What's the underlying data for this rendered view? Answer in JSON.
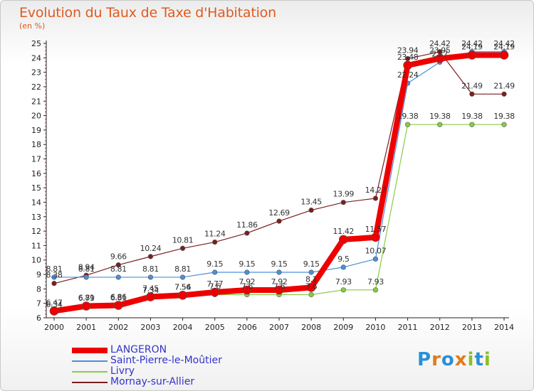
{
  "title": "Evolution du Taux de Taxe d'Habitation",
  "unit": "(en %)",
  "logo": {
    "text": "Proxiti",
    "letters": [
      "P",
      "r",
      "o",
      "x",
      "i",
      "t",
      "i"
    ],
    "colors": [
      "#2a8fd8",
      "#e07b1a",
      "#2a8fd8",
      "#e07b1a",
      "#8cbf26",
      "#2a8fd8",
      "#8cbf26"
    ]
  },
  "chart_data": {
    "type": "line",
    "categories": [
      "2000",
      "2001",
      "2002",
      "2003",
      "2004",
      "2005",
      "2006",
      "2007",
      "2008",
      "2009",
      "2010",
      "2011",
      "2012",
      "2013",
      "2014"
    ],
    "ylim": [
      6,
      25
    ],
    "yticks": [
      6,
      7,
      8,
      9,
      10,
      11,
      12,
      13,
      14,
      15,
      16,
      17,
      18,
      19,
      20,
      21,
      22,
      23,
      24,
      25
    ],
    "grid": false,
    "legend_position": "bottom-left",
    "series": [
      {
        "name": "LANGERON",
        "color": "#ee0000",
        "values": [
          6.47,
          6.81,
          6.86,
          7.45,
          7.56,
          7.77,
          7.92,
          7.92,
          8.1,
          11.42,
          11.57,
          23.48,
          23.95,
          24.19,
          24.19
        ],
        "labels": [
          "6.47",
          "6.81",
          "6.86",
          "7.45",
          "7.56",
          "7.77",
          "7.92",
          "7.92",
          "8.1",
          "11.42",
          "11.57",
          "23.48",
          "23.95",
          "24.19",
          "24.19"
        ]
      },
      {
        "name": "Saint-Pierre-le-Moûtier",
        "color": "#4a90d9",
        "values": [
          8.81,
          8.81,
          8.81,
          8.81,
          8.81,
          9.15,
          9.15,
          9.15,
          9.15,
          9.5,
          10.07,
          22.24,
          23.7,
          24.42,
          24.42
        ],
        "labels": [
          "8.81",
          "8.81",
          "8.81",
          "8.81",
          "8.81",
          "9.15",
          "9.15",
          "9.15",
          "9.15",
          "9.5",
          "10.07",
          "22.24",
          "23.7",
          "24.42",
          "24.42"
        ]
      },
      {
        "name": "Livry",
        "color": "#88cc44",
        "values": [
          6.34,
          6.79,
          6.81,
          7.34,
          7.54,
          7.6,
          7.6,
          7.6,
          7.6,
          7.93,
          7.93,
          19.38,
          19.38,
          19.38,
          19.38
        ],
        "labels": [
          "6.34",
          "6.79",
          "6.81",
          "7.34",
          "7.54",
          "7.6",
          "7.6",
          "7.6",
          "7.6",
          "7.93",
          "7.93",
          "19.38",
          "19.38",
          "19.38",
          "19.38"
        ]
      },
      {
        "name": "Mornay-sur-Allier",
        "color": "#7a1f1f",
        "values": [
          8.38,
          8.94,
          9.66,
          10.24,
          10.81,
          11.24,
          11.86,
          12.69,
          13.45,
          13.99,
          14.27,
          23.94,
          24.42,
          21.49,
          21.49
        ],
        "labels": [
          "8.38",
          "8.94",
          "9.66",
          "10.24",
          "10.81",
          "11.24",
          "11.86",
          "12.69",
          "13.45",
          "13.99",
          "14.27",
          "23.94",
          "24.42",
          "21.49",
          "21.49"
        ]
      }
    ]
  }
}
